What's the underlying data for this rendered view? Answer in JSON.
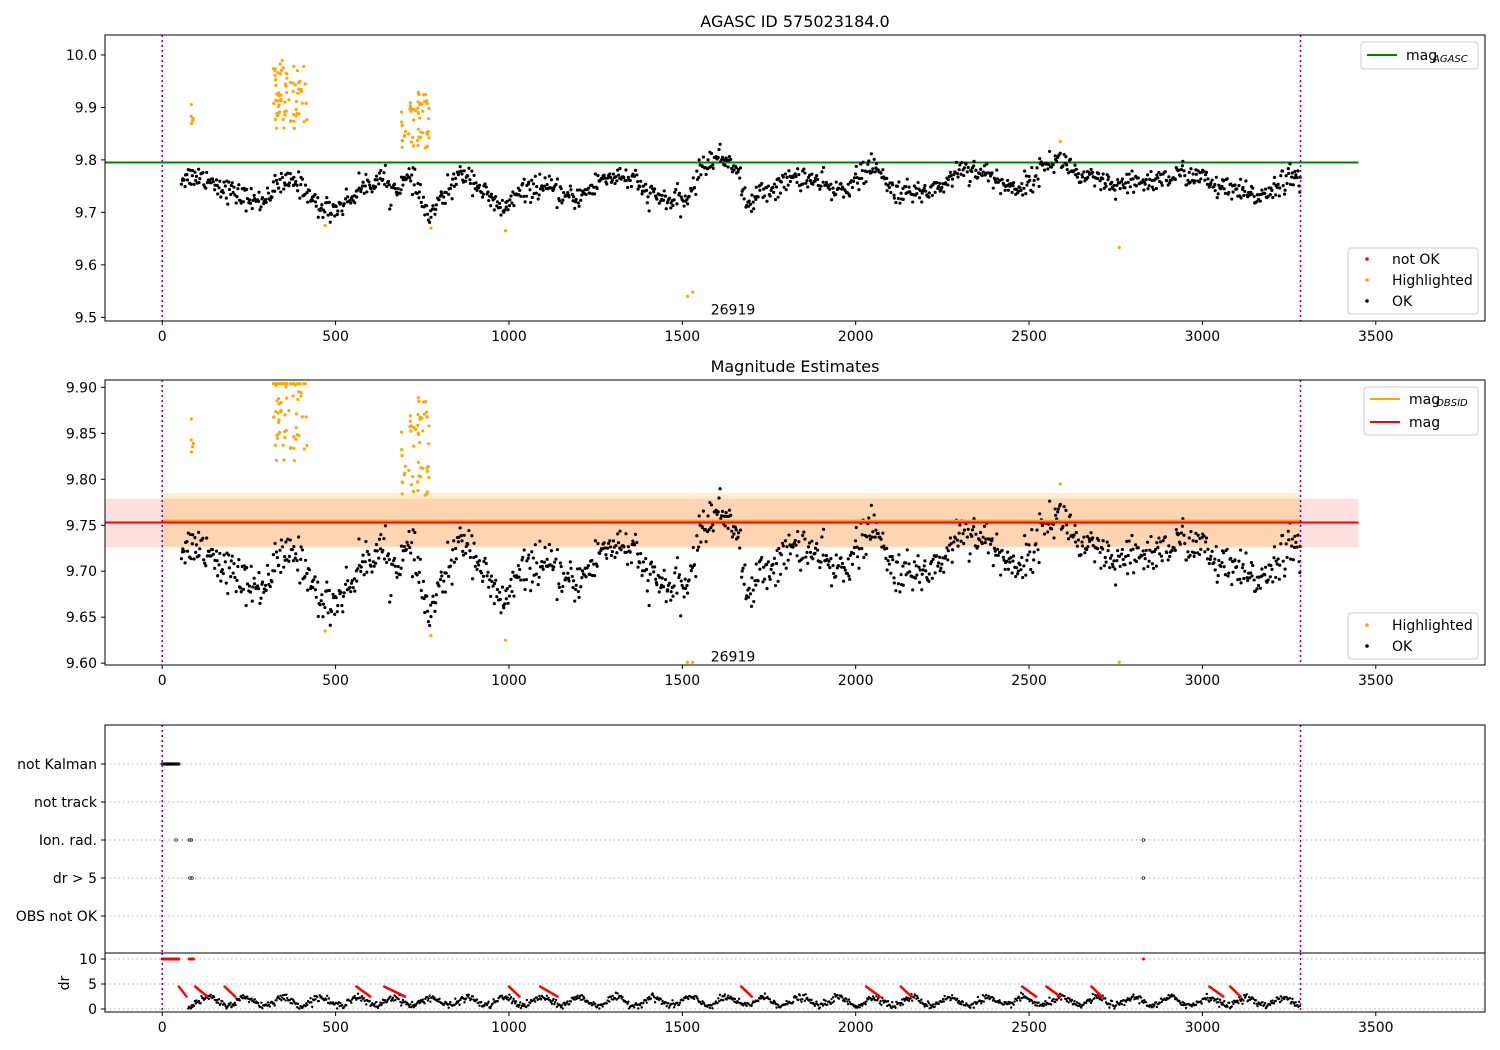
{
  "chart_data": [
    {
      "type": "scatter",
      "title": "AGASC ID 575023184.0",
      "x_range": [
        -165,
        3815
      ],
      "y_range": [
        9.493,
        10.038
      ],
      "x_ticks": [
        0,
        500,
        1000,
        1500,
        2000,
        2500,
        3000,
        3500
      ],
      "y_ticks": [
        9.5,
        9.6,
        9.7,
        9.8,
        9.9,
        10.0
      ],
      "y_tick_labels": [
        "9.5",
        "9.6",
        "9.7",
        "9.8",
        "9.9",
        "10.0"
      ],
      "vlines": [
        0,
        3283
      ],
      "annotation": {
        "text": "26919",
        "x": 1582,
        "y": 9.515
      },
      "hlines": [
        {
          "name": "mag_AGASC",
          "value": 9.795,
          "color": "#008000",
          "x_range": [
            -165,
            3450
          ]
        }
      ],
      "legend_lines": [
        {
          "text": "mag",
          "sub": "AGASC",
          "color": "#008000"
        }
      ],
      "legend_points": [
        {
          "text": "not OK",
          "color": "#ff0000"
        },
        {
          "text": "Highlighted",
          "color": "#ffa500"
        },
        {
          "text": "OK",
          "color": "#000000"
        }
      ],
      "series": [
        {
          "name": "OK",
          "color": "#000000",
          "trend": [
            [
              55,
              9.765
            ],
            [
              90,
              9.77
            ],
            [
              130,
              9.765
            ],
            [
              180,
              9.745
            ],
            [
              230,
              9.73
            ],
            [
              280,
              9.72
            ],
            [
              300,
              9.73
            ],
            [
              330,
              9.75
            ],
            [
              380,
              9.76
            ],
            [
              420,
              9.74
            ],
            [
              450,
              9.708
            ],
            [
              500,
              9.706
            ],
            [
              540,
              9.725
            ],
            [
              570,
              9.745
            ],
            [
              610,
              9.76
            ],
            [
              640,
              9.765
            ],
            [
              660,
              9.74
            ],
            [
              690,
              9.755
            ],
            [
              720,
              9.765
            ],
            [
              770,
              9.69
            ],
            [
              800,
              9.72
            ],
            [
              850,
              9.765
            ],
            [
              880,
              9.775
            ],
            [
              900,
              9.76
            ],
            [
              950,
              9.72
            ],
            [
              980,
              9.705
            ],
            [
              1020,
              9.73
            ],
            [
              1060,
              9.745
            ],
            [
              1090,
              9.75
            ],
            [
              1130,
              9.74
            ],
            [
              1180,
              9.725
            ],
            [
              1230,
              9.74
            ],
            [
              1270,
              9.765
            ],
            [
              1320,
              9.77
            ],
            [
              1360,
              9.76
            ],
            [
              1400,
              9.735
            ],
            [
              1460,
              9.722
            ],
            [
              1510,
              9.72
            ],
            [
              1560,
              9.79
            ],
            [
              1600,
              9.805
            ],
            [
              1650,
              9.795
            ],
            [
              1690,
              9.71
            ],
            [
              1720,
              9.735
            ],
            [
              1780,
              9.75
            ],
            [
              1830,
              9.77
            ],
            [
              1880,
              9.76
            ],
            [
              1940,
              9.74
            ],
            [
              1990,
              9.755
            ],
            [
              2050,
              9.79
            ],
            [
              2100,
              9.745
            ],
            [
              2150,
              9.735
            ],
            [
              2200,
              9.74
            ],
            [
              2260,
              9.755
            ],
            [
              2300,
              9.785
            ],
            [
              2350,
              9.78
            ],
            [
              2400,
              9.765
            ],
            [
              2450,
              9.745
            ],
            [
              2500,
              9.755
            ],
            [
              2550,
              9.795
            ],
            [
              2600,
              9.8
            ],
            [
              2650,
              9.765
            ],
            [
              2700,
              9.76
            ],
            [
              2750,
              9.745
            ],
            [
              2800,
              9.755
            ],
            [
              2850,
              9.76
            ],
            [
              2900,
              9.765
            ],
            [
              2950,
              9.775
            ],
            [
              3000,
              9.765
            ],
            [
              3050,
              9.745
            ],
            [
              3100,
              9.74
            ],
            [
              3150,
              9.73
            ],
            [
              3200,
              9.745
            ],
            [
              3250,
              9.77
            ],
            [
              3283,
              9.755
            ]
          ],
          "noise": 0.011,
          "count": 1250
        },
        {
          "name": "Highlighted",
          "color": "#ffa500",
          "clusters": [
            {
              "x": [
                320,
                420
              ],
              "y": [
                9.86,
                9.99
              ],
              "count": 70
            },
            {
              "x": [
                690,
                770
              ],
              "y": [
                9.82,
                9.93
              ],
              "count": 55
            },
            {
              "x": [
                75,
                90
              ],
              "y": [
                9.85,
                9.91
              ],
              "count": 5
            }
          ],
          "points": [
            [
              1515,
              9.54
            ],
            [
              1530,
              9.548
            ],
            [
              2760,
              9.633
            ],
            [
              775,
              9.67
            ],
            [
              470,
              9.675
            ],
            [
              990,
              9.665
            ],
            [
              2590,
              9.835
            ]
          ]
        }
      ]
    },
    {
      "type": "scatter",
      "title": "Magnitude Estimates",
      "x_range": [
        -165,
        3815
      ],
      "y_range": [
        9.598,
        9.908
      ],
      "x_ticks": [
        0,
        500,
        1000,
        1500,
        2000,
        2500,
        3000,
        3500
      ],
      "y_ticks": [
        9.6,
        9.65,
        9.7,
        9.75,
        9.8,
        9.85,
        9.9
      ],
      "y_tick_labels": [
        "9.60",
        "9.65",
        "9.70",
        "9.75",
        "9.80",
        "9.85",
        "9.90"
      ],
      "vlines": [
        0,
        3283
      ],
      "annotation": {
        "text": "26919",
        "x": 1582,
        "y": 9.607
      },
      "bands": [
        {
          "y0": 9.726,
          "y1": 9.779,
          "color": "#ff0000",
          "alpha": 0.12,
          "x_range": [
            -165,
            3450
          ]
        },
        {
          "y0": 9.727,
          "y1": 9.785,
          "color": "#ffa500",
          "alpha": 0.2,
          "x_range": [
            0,
            3283
          ]
        }
      ],
      "hlines": [
        {
          "name": "mag_OBSID",
          "value": 9.755,
          "color": "#ffa500",
          "x_range": [
            0,
            3283
          ]
        },
        {
          "name": "mag",
          "value": 9.753,
          "color": "#ff0000",
          "x_range": [
            -165,
            3450
          ]
        }
      ],
      "legend_lines": [
        {
          "text": "mag",
          "sub": "OBSID",
          "color": "#ffa500"
        },
        {
          "text": "mag",
          "sub": "",
          "color": "#ff0000"
        }
      ],
      "legend_points": [
        {
          "text": "Highlighted",
          "color": "#ffa500"
        },
        {
          "text": "OK",
          "color": "#000000"
        }
      ]
    },
    {
      "type": "scatter",
      "title": "",
      "x_range": [
        -165,
        3815
      ],
      "categories": [
        "not Kalman",
        "not track",
        "Ion. rad.",
        "dr > 5",
        "OBS not OK"
      ],
      "vlines": [
        0,
        3283
      ],
      "flags": [
        {
          "category": "not Kalman",
          "x_ranges": [
            [
              0,
              50
            ]
          ]
        },
        {
          "category": "Ion. rad.",
          "points": [
            40,
            78,
            84,
            2830
          ]
        },
        {
          "category": "dr > 5",
          "points": [
            80,
            86,
            2830
          ]
        }
      ]
    },
    {
      "type": "scatter",
      "title": "",
      "ylabel": "dr",
      "x_range": [
        -165,
        3815
      ],
      "y_range": [
        -0.6,
        11.2
      ],
      "x_ticks": [
        0,
        500,
        1000,
        1500,
        2000,
        2500,
        3000,
        3500
      ],
      "y_ticks": [
        0,
        5,
        10
      ],
      "y_tick_labels": [
        "0",
        "5",
        "10"
      ],
      "vlines": [
        0,
        3283
      ],
      "baseline": 1.5,
      "high_points": {
        "value": 10,
        "x_ranges": [
          [
            0,
            50
          ],
          [
            78,
            90
          ]
        ],
        "points": [
          2830
        ]
      },
      "red_segments": [
        [
          48,
          70
        ],
        [
          95,
          130
        ],
        [
          180,
          210
        ],
        [
          560,
          600
        ],
        [
          640,
          700
        ],
        [
          1000,
          1030
        ],
        [
          1090,
          1140
        ],
        [
          1670,
          1700
        ],
        [
          2030,
          2070
        ],
        [
          2130,
          2160
        ],
        [
          2480,
          2520
        ],
        [
          2550,
          2590
        ],
        [
          2680,
          2710
        ],
        [
          3020,
          3060
        ],
        [
          3080,
          3110
        ]
      ]
    }
  ]
}
